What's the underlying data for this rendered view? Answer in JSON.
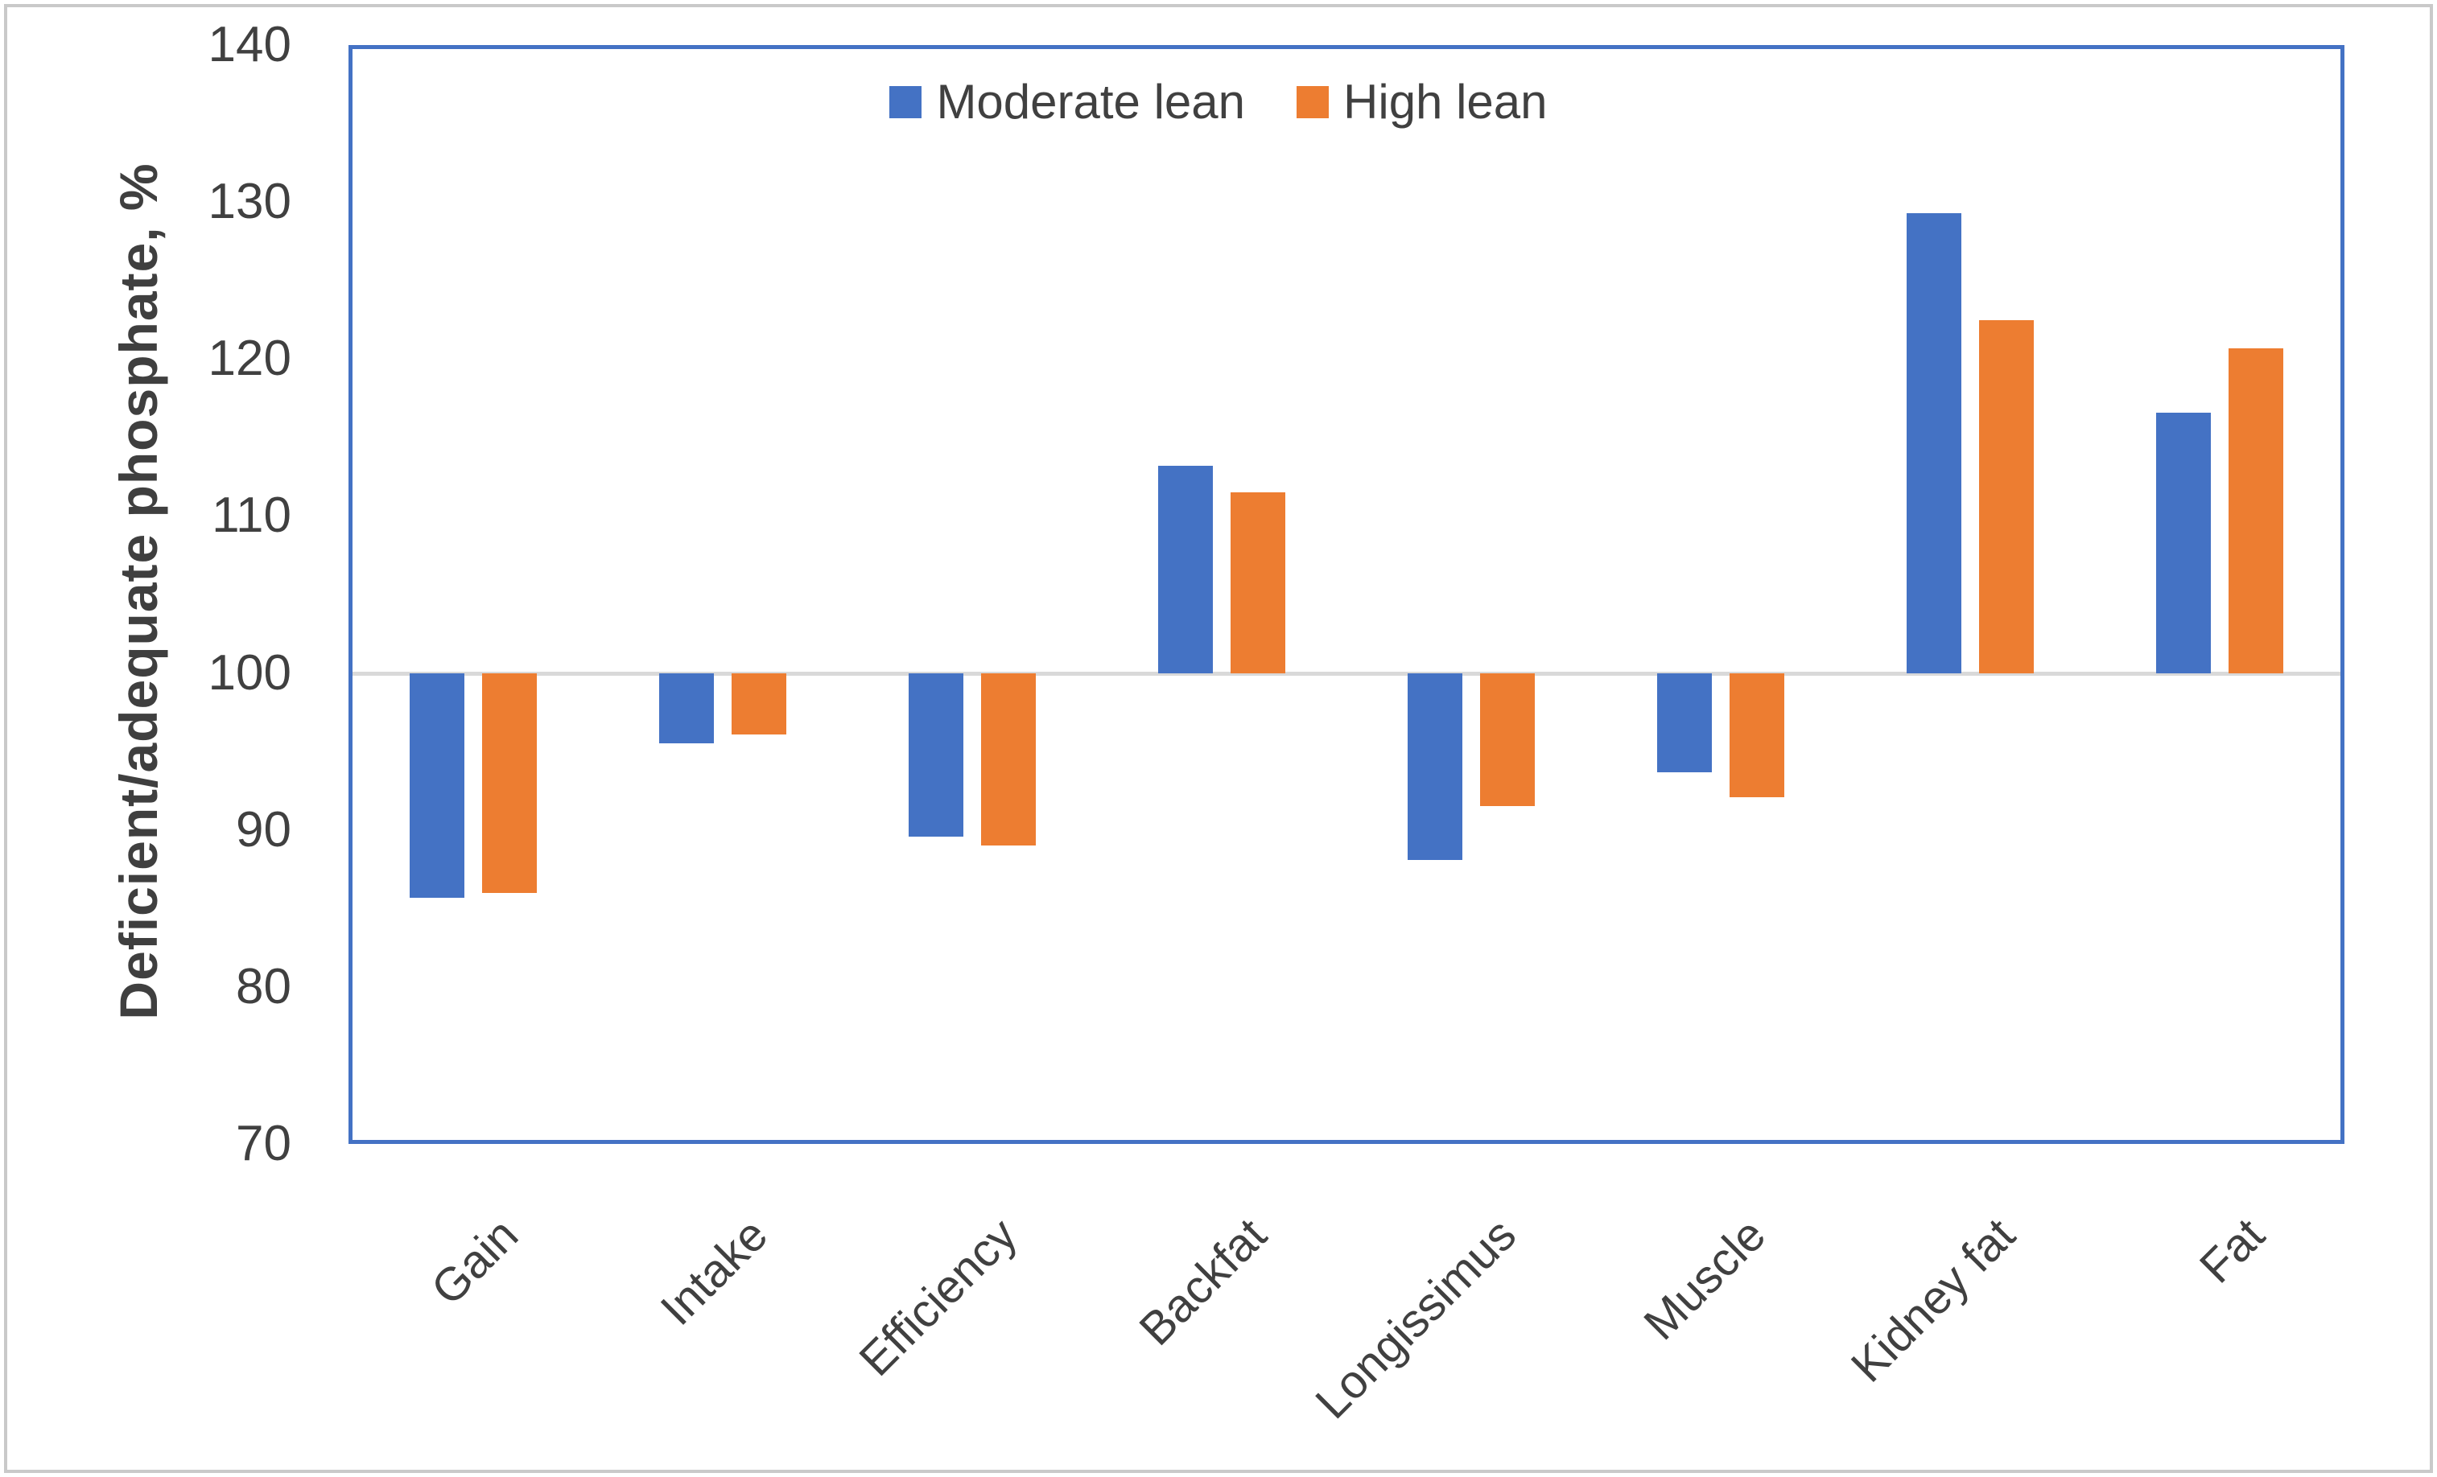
{
  "figure": {
    "outer_border_color": "#c9c9c9",
    "plot_border_color": "#4472C4"
  },
  "legend": {
    "position": "top-center",
    "items": [
      {
        "label": "Moderate lean",
        "color": "#4472C4"
      },
      {
        "label": "High lean",
        "color": "#ED7D31"
      }
    ]
  },
  "chart_data": {
    "type": "bar",
    "title": "",
    "xlabel": "",
    "ylabel": "Deficient/adequate phosphate, %",
    "categories": [
      "Gain",
      "Intake",
      "Efficiency",
      "Backfat",
      "Longissimus",
      "Muscle",
      "Kidney fat",
      "Fat"
    ],
    "series": [
      {
        "name": "Moderate lean",
        "color": "#4472C4",
        "values": [
          85.7,
          95.5,
          89.6,
          113.2,
          88.1,
          93.7,
          129.3,
          116.6
        ]
      },
      {
        "name": "High lean",
        "color": "#ED7D31",
        "values": [
          86.0,
          96.1,
          89.0,
          111.5,
          91.5,
          92.1,
          122.5,
          120.7
        ]
      }
    ],
    "ylim": [
      70,
      140
    ],
    "yticks": [
      140,
      130,
      120,
      110,
      100,
      90,
      80,
      70
    ],
    "baseline": 100,
    "grid": "baseline-only",
    "grid_color": "#D9D9D9",
    "legend_position": "top-center"
  }
}
